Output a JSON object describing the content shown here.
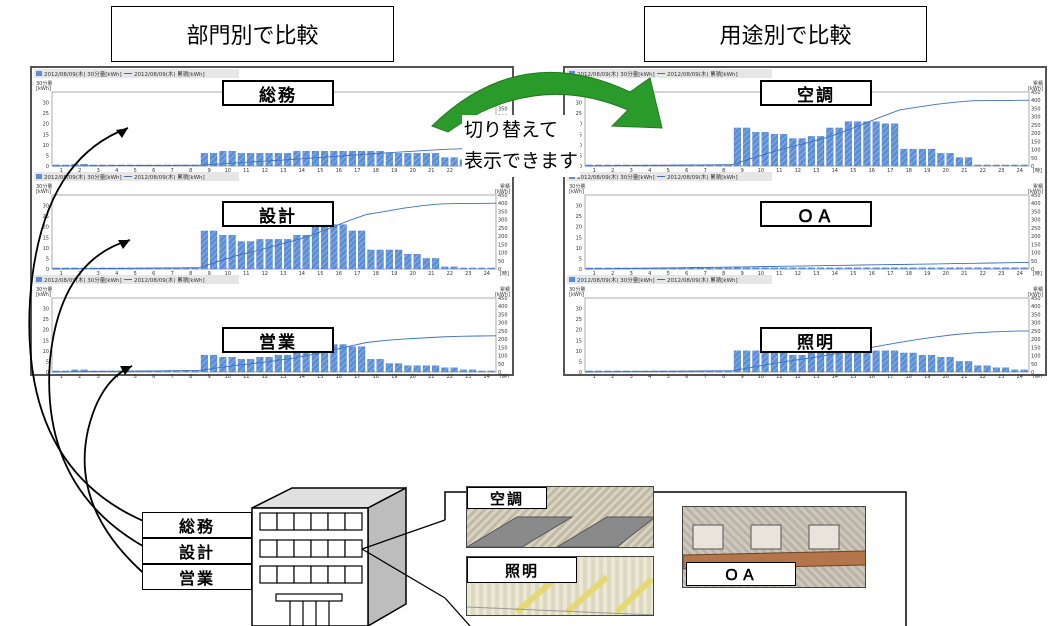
{
  "headers": {
    "left": "部門別で比較",
    "right": "用途別で比較"
  },
  "callout": {
    "line1": "切り替えて",
    "line2": "表示できます"
  },
  "departments": [
    "総務",
    "設計",
    "営業"
  ],
  "usages": {
    "hvac": "空調",
    "lighting": "照明",
    "oa": "ＯＡ"
  },
  "legend": {
    "bar": "2012/08/09(木) 30分量[kWh]",
    "line": "2012/08/09(木) 累積[kWh]"
  },
  "axis_left_title": "30分量",
  "axis_right_title": "累積",
  "axis_unit": "[kWh]",
  "hour_unit": "[時]",
  "colors": {
    "bar": "#5b8ed6",
    "line": "#3a6fc4",
    "arrow": "#2a9a2a"
  },
  "chart_data": [
    {
      "type": "bar",
      "label": "総務",
      "x": [
        1,
        2,
        3,
        4,
        5,
        6,
        7,
        8,
        9,
        10,
        11,
        12,
        13,
        14,
        15,
        16,
        17,
        18,
        19,
        20,
        21,
        22,
        23,
        24
      ],
      "values": [
        0.5,
        0.8,
        0.5,
        0.5,
        0.5,
        0.5,
        0.5,
        0.5,
        6,
        7,
        6,
        6,
        6,
        7,
        7,
        7,
        7,
        7,
        6,
        6,
        6,
        4,
        3,
        2
      ],
      "cumulative_end": 110,
      "ylim": [
        0,
        35
      ],
      "y2lim": [
        0,
        450
      ]
    },
    {
      "type": "bar",
      "label": "設計",
      "x": [
        1,
        2,
        3,
        4,
        5,
        6,
        7,
        8,
        9,
        10,
        11,
        12,
        13,
        14,
        15,
        16,
        17,
        18,
        19,
        20,
        21,
        22,
        23,
        24
      ],
      "values": [
        0.5,
        0.5,
        0.5,
        0.5,
        0.5,
        0.5,
        0.5,
        0.5,
        18,
        16,
        13,
        14,
        14,
        16,
        20,
        21,
        18,
        9,
        9,
        7,
        5,
        1,
        0.5,
        0.5
      ],
      "cumulative_end": 400,
      "ylim": [
        0,
        35
      ],
      "y2lim": [
        0,
        450
      ]
    },
    {
      "type": "bar",
      "label": "営業",
      "x": [
        1,
        2,
        3,
        4,
        5,
        6,
        7,
        8,
        9,
        10,
        11,
        12,
        13,
        14,
        15,
        16,
        17,
        18,
        19,
        20,
        21,
        22,
        23,
        24
      ],
      "values": [
        0.5,
        1,
        0.5,
        0.5,
        0.5,
        0.5,
        0.5,
        0.5,
        8,
        7,
        6,
        7,
        8,
        10,
        11,
        13,
        12,
        6,
        4,
        3,
        3,
        2,
        1,
        0.5
      ],
      "cumulative_end": 220,
      "ylim": [
        0,
        35
      ],
      "y2lim": [
        0,
        450
      ]
    },
    {
      "type": "bar",
      "label": "空調",
      "x": [
        1,
        2,
        3,
        4,
        5,
        6,
        7,
        8,
        9,
        10,
        11,
        12,
        13,
        14,
        15,
        16,
        17,
        18,
        19,
        20,
        21,
        22,
        23,
        24
      ],
      "values": [
        0.5,
        0.5,
        0.5,
        0.5,
        0.5,
        0.5,
        0.5,
        0.5,
        18,
        16,
        15,
        13,
        14,
        18,
        21,
        21,
        20,
        8,
        8,
        6,
        4,
        0.5,
        0.5,
        0.5
      ],
      "cumulative_end": 400,
      "ylim": [
        0,
        35
      ],
      "y2lim": [
        0,
        450
      ]
    },
    {
      "type": "bar",
      "label": "ＯＡ",
      "x": [
        1,
        2,
        3,
        4,
        5,
        6,
        7,
        8,
        9,
        10,
        11,
        12,
        13,
        14,
        15,
        16,
        17,
        18,
        19,
        20,
        21,
        22,
        23,
        24
      ],
      "values": [
        0.5,
        0.5,
        0.5,
        0.5,
        0.5,
        0.5,
        0.5,
        0.5,
        0.6,
        0.6,
        0.6,
        0.6,
        0.6,
        0.6,
        0.6,
        0.6,
        0.6,
        0.6,
        0.6,
        0.6,
        0.6,
        0.6,
        0.6,
        0.6
      ],
      "cumulative_end": 40,
      "ylim": [
        0,
        35
      ],
      "y2lim": [
        0,
        450
      ]
    },
    {
      "type": "bar",
      "label": "照明",
      "x": [
        1,
        2,
        3,
        4,
        5,
        6,
        7,
        8,
        9,
        10,
        11,
        12,
        13,
        14,
        15,
        16,
        17,
        18,
        19,
        20,
        21,
        22,
        23,
        24
      ],
      "values": [
        0.5,
        0.5,
        0.5,
        0.5,
        0.5,
        0.5,
        0.5,
        0.5,
        10,
        10,
        9,
        8,
        9,
        10,
        10,
        10,
        10,
        9,
        8,
        7,
        5,
        3,
        2,
        1
      ],
      "cumulative_end": 250,
      "ylim": [
        0,
        35
      ],
      "y2lim": [
        0,
        450
      ]
    }
  ]
}
